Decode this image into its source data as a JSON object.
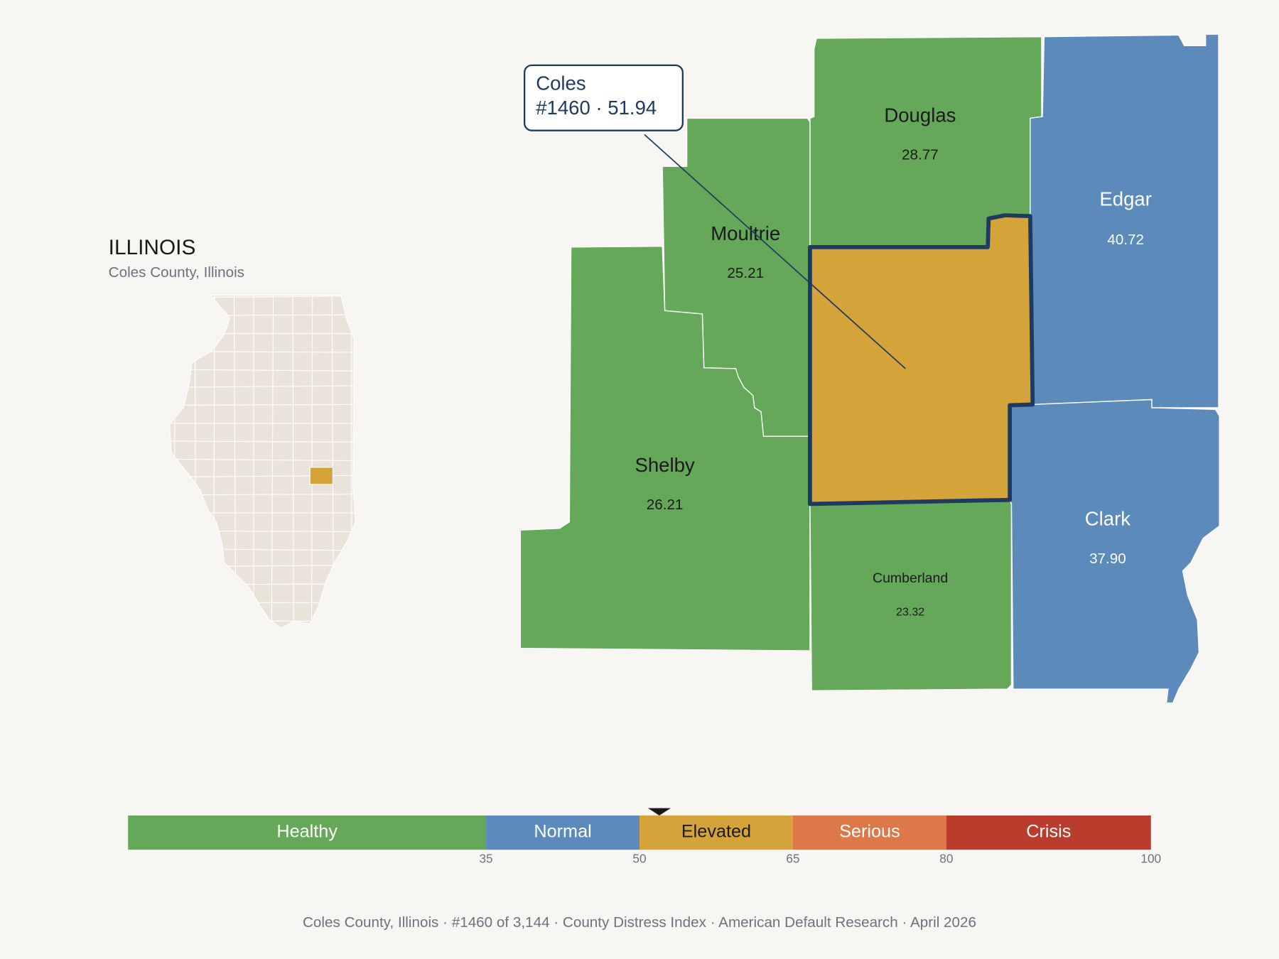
{
  "header": {
    "title": "ILLINOIS",
    "subtitle": "Coles County, Illinois"
  },
  "callout": {
    "name": "Coles",
    "detail": "#1460 · 51.94"
  },
  "counties": [
    {
      "name": "Douglas",
      "value": "28.77",
      "color": "#66a85a"
    },
    {
      "name": "Edgar",
      "value": "40.72",
      "color": "#5b8abb"
    },
    {
      "name": "Moultrie",
      "value": "25.21",
      "color": "#66a85a"
    },
    {
      "name": "Shelby",
      "value": "26.21",
      "color": "#66a85a"
    },
    {
      "name": "Cumberland",
      "value": "23.32",
      "color": "#66a85a"
    },
    {
      "name": "Clark",
      "value": "37.90",
      "color": "#5b8abb"
    }
  ],
  "scale": {
    "xlim": [
      0,
      100
    ],
    "ticks": [
      35,
      50,
      65,
      80,
      100
    ],
    "marker": 51.94,
    "segments": [
      {
        "label": "Healthy",
        "color": "#66a85a"
      },
      {
        "label": "Normal",
        "color": "#5b8abb"
      },
      {
        "label": "Elevated",
        "color": "#d4a43a"
      },
      {
        "label": "Serious",
        "color": "#dd7848"
      },
      {
        "label": "Crisis",
        "color": "#b93c2c"
      }
    ]
  },
  "footer": "Coles County, Illinois  ·  #1460 of 3,144  ·  County Distress Index  ·  American Default Research  ·  April 2026"
}
